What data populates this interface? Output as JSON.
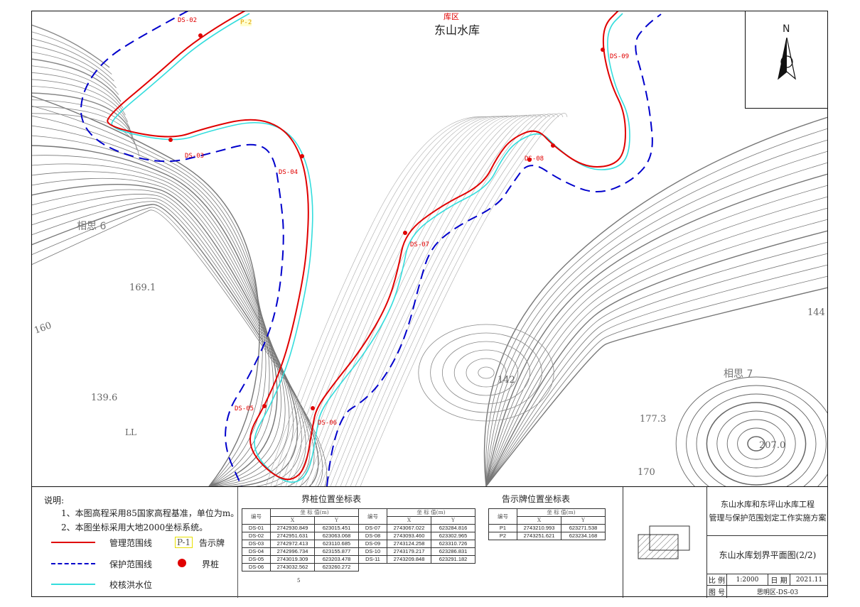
{
  "map": {
    "area_label": "库区",
    "reservoir_name": "东山水库",
    "north_label": "N",
    "stake_labels": [
      "DS-02",
      "DS-03",
      "DS-04",
      "DS-05",
      "DS-06",
      "DS-07",
      "DS-08",
      "DS-09"
    ],
    "sign_labels": [
      "P-2"
    ],
    "place_names": [
      "相思 6",
      "相思 7"
    ],
    "elevations": [
      "169.1",
      "160",
      "139.6",
      "142",
      "177.3",
      "207.0",
      "170",
      "144",
      "LL"
    ],
    "colors": {
      "management_line": "#e00000",
      "protection_line": "#0000cc",
      "flood_line": "#33dddd",
      "contour": "#888888"
    }
  },
  "notes": {
    "title": "说明:",
    "items": [
      "1、本图高程采用85国家高程基准，单位为m。",
      "2、本图坐标采用大地2000坐标系统。"
    ]
  },
  "legend": {
    "management_line": "管理范围线",
    "protection_line": "保护范围线",
    "flood_line": "校核洪水位",
    "sign_symbol": "P-1",
    "sign": "告示牌",
    "stake": "界桩"
  },
  "stake_table": {
    "title": "界桩位置坐标表",
    "col_id": "编号",
    "col_coord": "坐 标 值(m)",
    "col_x": "X",
    "col_y": "Y",
    "rows": [
      [
        "DS-01",
        "2742930.849",
        "623015.451"
      ],
      [
        "DS-02",
        "2742951.631",
        "623063.068"
      ],
      [
        "DS-03",
        "2742972.413",
        "623110.685"
      ],
      [
        "DS-04",
        "2742996.734",
        "623155.877"
      ],
      [
        "DS-05",
        "2743019.309",
        "623203.478"
      ],
      [
        "DS-06",
        "2743032.562",
        "623260.272"
      ],
      [
        "DS-07",
        "2743067.022",
        "623284.816"
      ],
      [
        "DS-08",
        "2743093.460",
        "623302.965"
      ],
      [
        "DS-09",
        "2743124.258",
        "623310.726"
      ],
      [
        "DS-10",
        "2743179.217",
        "623286.831"
      ],
      [
        "DS-11",
        "2743209.848",
        "623291.182"
      ]
    ],
    "footnote": "5"
  },
  "sign_table": {
    "title": "告示牌位置坐标表",
    "col_id": "编号",
    "col_coord": "坐 标 值(m)",
    "col_x": "X",
    "col_y": "Y",
    "rows": [
      [
        "P1",
        "2743210.993",
        "623271.538"
      ],
      [
        "P2",
        "2743251.621",
        "623234.168"
      ]
    ]
  },
  "title_block": {
    "project_line1": "东山水库和东坪山水库工程",
    "project_line2": "管理与保护范围划定工作实施方案",
    "drawing_title": "东山水库划界平面图(2/2)",
    "scale_label": "比 例",
    "scale_value": "1:2000",
    "date_label": "日 期",
    "date_value": "2021.11",
    "drawing_no_label": "图 号",
    "drawing_no_value": "思明区-DS-03"
  }
}
